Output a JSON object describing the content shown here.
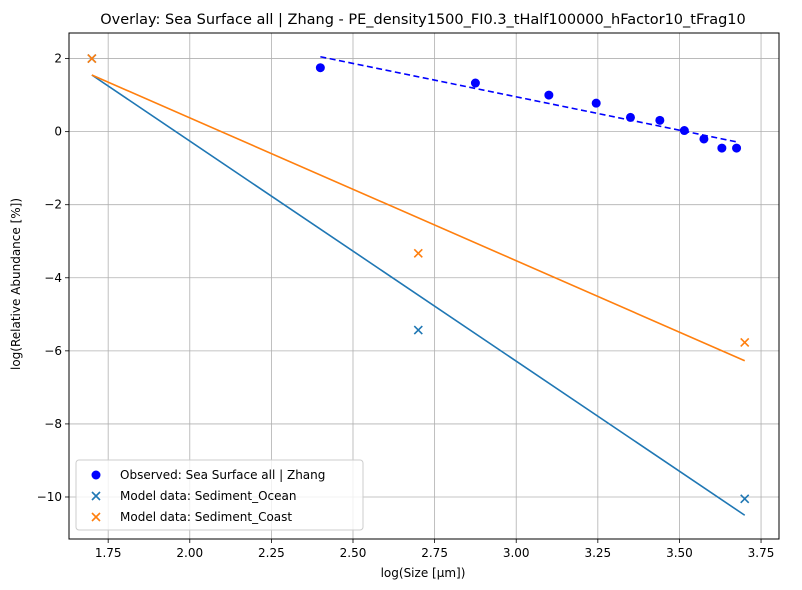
{
  "chart_data": {
    "type": "scatter",
    "title": "Overlay: Sea Surface all | Zhang - PE_density1500_FI0.3_tHalf100000_hFactor10_tFrag10",
    "xlabel": "log(Size [μm])",
    "ylabel": "log(Relative Abundance [%])",
    "xlim": [
      1.63,
      3.805
    ],
    "ylim": [
      -11.15,
      2.7
    ],
    "x_ticks": [
      {
        "value": 1.75,
        "label": "1.75"
      },
      {
        "value": 2.0,
        "label": "2.00"
      },
      {
        "value": 2.25,
        "label": "2.25"
      },
      {
        "value": 2.5,
        "label": "2.50"
      },
      {
        "value": 2.75,
        "label": "2.75"
      },
      {
        "value": 3.0,
        "label": "3.00"
      },
      {
        "value": 3.25,
        "label": "3.25"
      },
      {
        "value": 3.5,
        "label": "3.50"
      },
      {
        "value": 3.75,
        "label": "3.75"
      }
    ],
    "y_ticks": [
      {
        "value": 2,
        "label": "2"
      },
      {
        "value": 0,
        "label": "0"
      },
      {
        "value": -2,
        "label": "−2"
      },
      {
        "value": -4,
        "label": "−4"
      },
      {
        "value": -6,
        "label": "−6"
      },
      {
        "value": -8,
        "label": "−8"
      },
      {
        "value": -10,
        "label": "−10"
      }
    ],
    "grid": true,
    "legend_position": "lower-left",
    "series": [
      {
        "name": "Observed: Sea Surface all | Zhang",
        "marker": "circle",
        "color": "#0000ff",
        "x": [
          2.4,
          2.875,
          3.1,
          3.245,
          3.35,
          3.44,
          3.515,
          3.575,
          3.63,
          3.675
        ],
        "y": [
          1.75,
          1.33,
          1.0,
          0.78,
          0.39,
          0.31,
          0.03,
          -0.2,
          -0.45,
          -0.45
        ]
      },
      {
        "name": "Model data: Sediment_Ocean",
        "marker": "x",
        "color": "#1f77b4",
        "x": [
          1.7,
          2.7,
          3.7
        ],
        "y": [
          2.0,
          -5.43,
          -10.05
        ]
      },
      {
        "name": "Model data: Sediment_Coast",
        "marker": "x",
        "color": "#ff7f0e",
        "x": [
          1.7,
          2.7,
          3.7
        ],
        "y": [
          2.0,
          -3.33,
          -5.77
        ]
      }
    ],
    "fit_lines": [
      {
        "color": "#0000ff",
        "style": "dashed",
        "x": [
          2.4,
          3.675
        ],
        "y": [
          2.05,
          -0.28
        ]
      },
      {
        "color": "#1f77b4",
        "style": "solid",
        "x": [
          1.7,
          3.7
        ],
        "y": [
          1.55,
          -10.5
        ]
      },
      {
        "color": "#ff7f0e",
        "style": "solid",
        "x": [
          1.7,
          3.7
        ],
        "y": [
          1.55,
          -6.27
        ]
      }
    ]
  }
}
